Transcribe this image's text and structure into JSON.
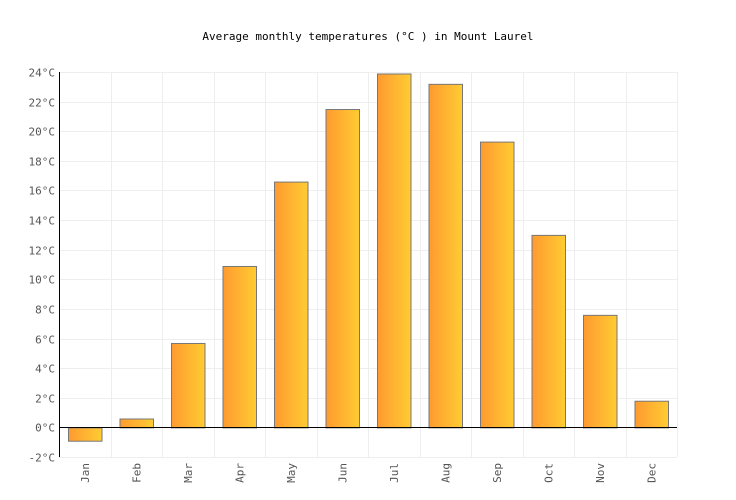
{
  "chart_data": {
    "type": "bar",
    "title": "Average monthly temperatures (°C ) in Mount Laurel",
    "xlabel": "",
    "ylabel": "",
    "categories": [
      "Jan",
      "Feb",
      "Mar",
      "Apr",
      "May",
      "Jun",
      "Jul",
      "Aug",
      "Sep",
      "Oct",
      "Nov",
      "Dec"
    ],
    "values": [
      -0.9,
      0.6,
      5.7,
      10.9,
      16.6,
      21.5,
      23.9,
      23.2,
      19.3,
      13.0,
      7.6,
      1.8
    ],
    "ylim": [
      -2,
      24
    ],
    "yticks": [
      "-2°C",
      "0°C",
      "2°C",
      "4°C",
      "6°C",
      "8°C",
      "10°C",
      "12°C",
      "14°C",
      "16°C",
      "18°C",
      "20°C",
      "22°C",
      "24°C"
    ],
    "grid": true,
    "colors": {
      "bar_start": "#ff9a30",
      "bar_end": "#ffcc33",
      "bar_stroke": "#777777",
      "grid": "#eeeeee"
    }
  }
}
